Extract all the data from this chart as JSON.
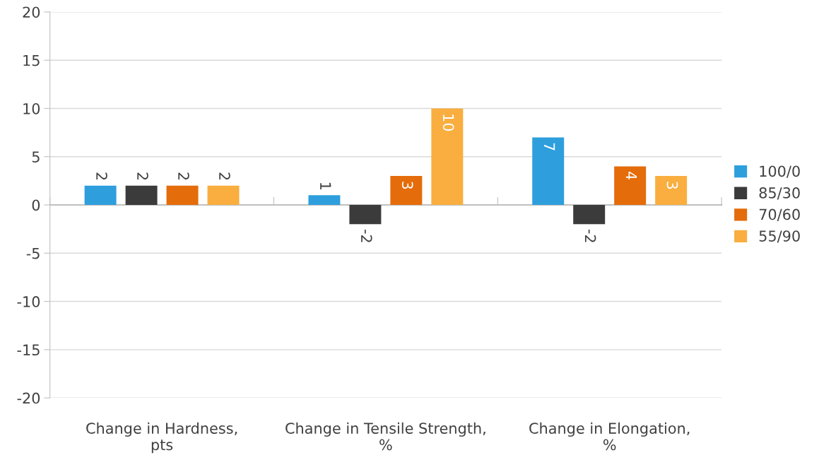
{
  "chart_data": {
    "type": "bar",
    "categories": [
      "Change in Hardness,\npts",
      "Change in Tensile Strength,\n%",
      "Change in Elongation,\n%"
    ],
    "series": [
      {
        "name": "100/0",
        "color": "#2e9fdc",
        "values": [
          2,
          1,
          7
        ]
      },
      {
        "name": "85/30",
        "color": "#3b3b3b",
        "values": [
          2,
          -2,
          -2
        ]
      },
      {
        "name": "70/60",
        "color": "#e46c0a",
        "values": [
          2,
          3,
          4
        ]
      },
      {
        "name": "55/90",
        "color": "#f9ae3f",
        "values": [
          2,
          10,
          3
        ]
      }
    ],
    "ylim": [
      -20,
      20
    ],
    "yticks": [
      -20,
      -15,
      -10,
      -5,
      0,
      5,
      10,
      15,
      20
    ],
    "grid": "y",
    "legend": "right",
    "data_labels": true
  }
}
